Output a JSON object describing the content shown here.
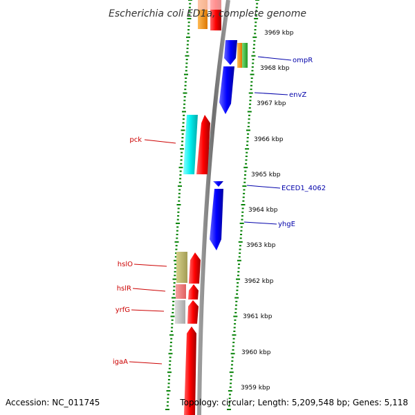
{
  "header": {
    "title": "Escherichia coli ED1a, complete genome"
  },
  "footer": {
    "accession": "Accession: NC_011745",
    "topology": "Topology: circular; Length: 5,209,548 bp; Genes: 5,118"
  },
  "colors": {
    "ticks": "#008000",
    "backbone": "#808080",
    "forward_label": "#cc0000",
    "reverse_label": "#0000aa",
    "leader_forward": "#cc0000",
    "leader_reverse": "#0000aa"
  },
  "scale": {
    "kbp_labels": [
      {
        "kbp": 3969,
        "text": "3969 kbp"
      },
      {
        "kbp": 3968,
        "text": "3968 kbp"
      },
      {
        "kbp": 3967,
        "text": "3967 kbp"
      },
      {
        "kbp": 3966,
        "text": "3966 kbp"
      },
      {
        "kbp": 3965,
        "text": "3965 kbp"
      },
      {
        "kbp": 3964,
        "text": "3964 kbp"
      },
      {
        "kbp": 3963,
        "text": "3963 kbp"
      },
      {
        "kbp": 3962,
        "text": "3962 kbp"
      },
      {
        "kbp": 3961,
        "text": "3961 kbp"
      },
      {
        "kbp": 3960,
        "text": "3960 kbp"
      },
      {
        "kbp": 3959,
        "text": "3959 kbp"
      }
    ]
  },
  "gene_labels": {
    "left": [
      {
        "name": "pck"
      },
      {
        "name": "hslO"
      },
      {
        "name": "hslR"
      },
      {
        "name": "yrfG"
      },
      {
        "name": "igaA"
      }
    ],
    "right": [
      {
        "name": "ompR"
      },
      {
        "name": "envZ"
      },
      {
        "name": "ECED1_4062"
      },
      {
        "name": "yhgE"
      }
    ]
  },
  "features": {
    "colors": {
      "cds": "#ff0000",
      "cds_reverse": "#0000ff",
      "cyan": "#00eeee",
      "orange": "#ff8c00",
      "green": "#33cc33",
      "olive": "#bdb76b",
      "pink": "#f08080",
      "grey": "#c0c0c0",
      "light_pink": "#ffcccc"
    }
  }
}
